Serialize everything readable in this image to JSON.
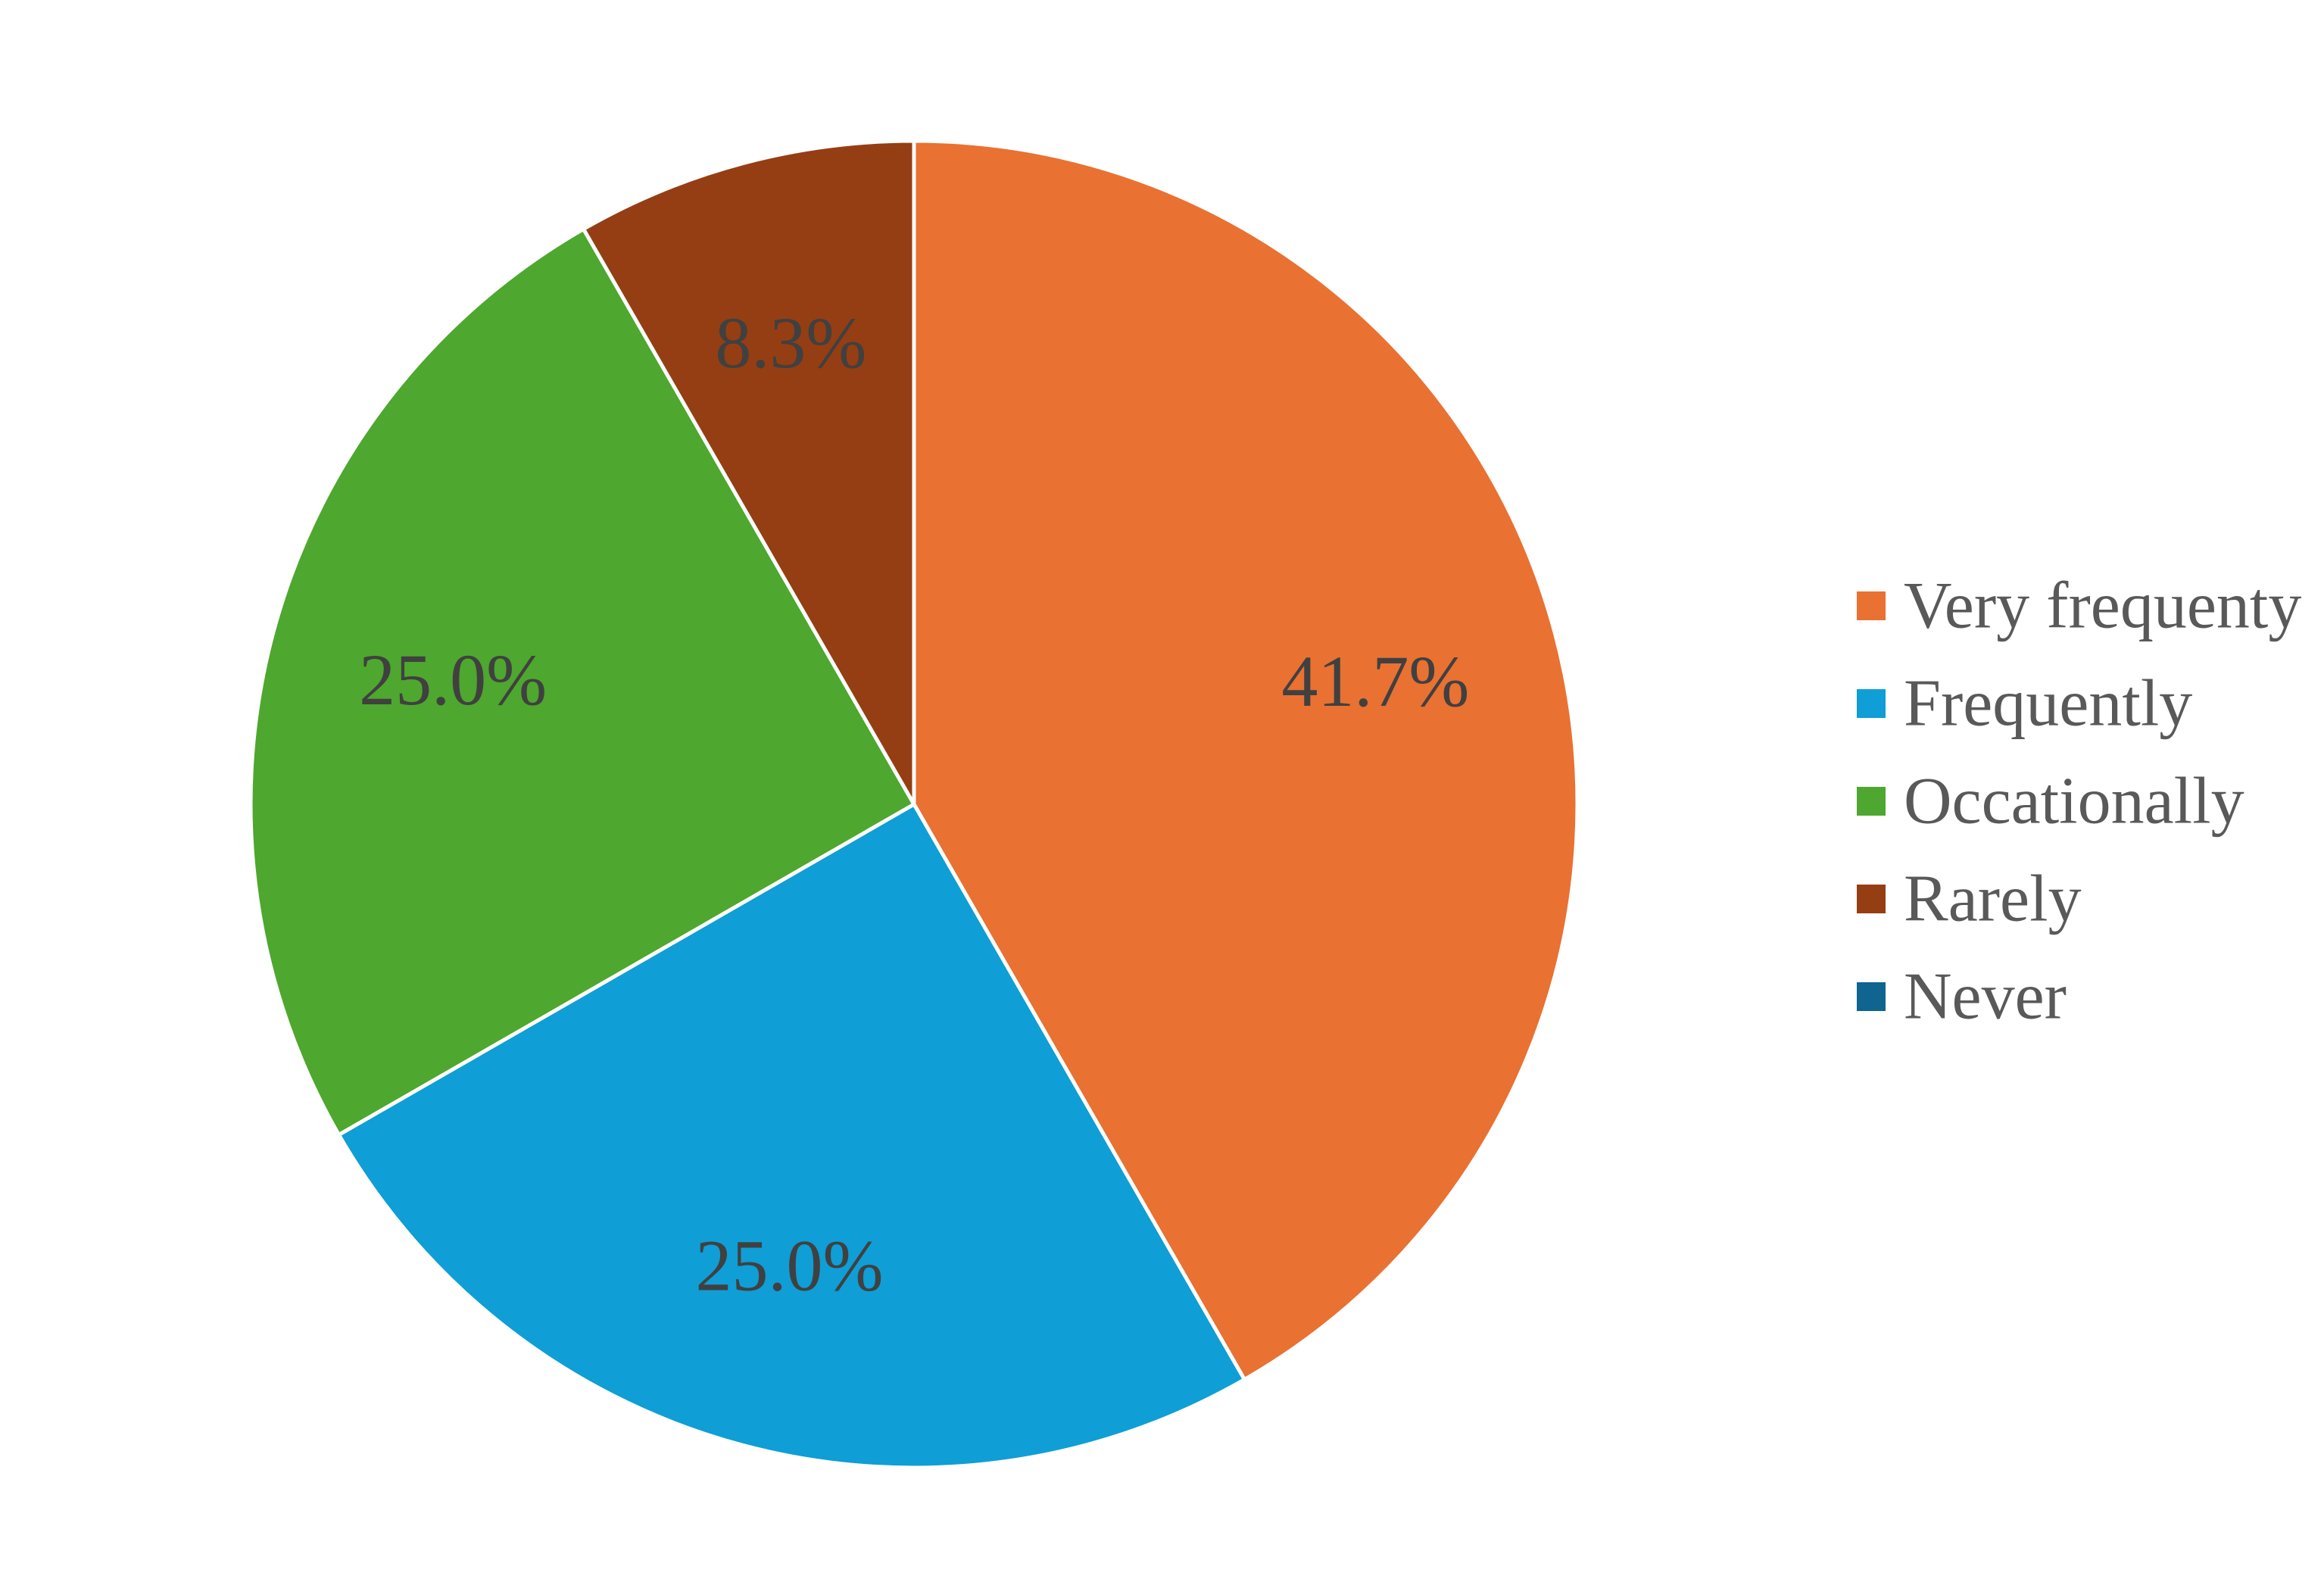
{
  "chart_data": {
    "type": "pie",
    "title": "",
    "categories": [
      "Very frequenty",
      "Frequently",
      "Occationally",
      "Rarely",
      "Never"
    ],
    "values": [
      41.7,
      25.0,
      25.0,
      8.3,
      0.0
    ],
    "data_labels": [
      "41.7%",
      "25.0%",
      "25.0%",
      "8.3%",
      ""
    ],
    "colors": [
      "#E97132",
      "#0F9ED5",
      "#4EA72E",
      "#953E13",
      "#0F6590"
    ],
    "start_angle_deg": 0,
    "direction": "clockwise",
    "legend_position": "right"
  }
}
